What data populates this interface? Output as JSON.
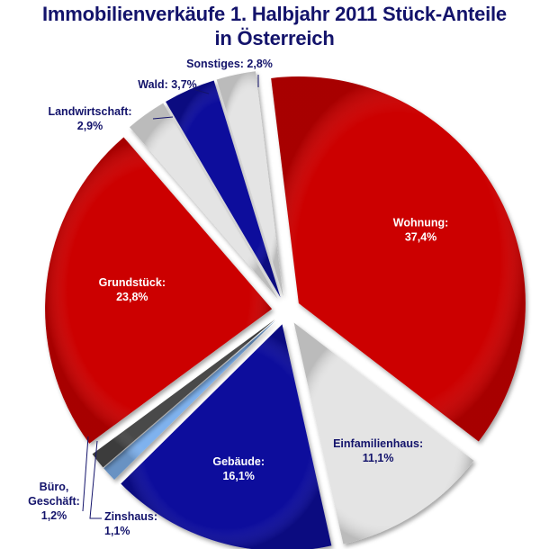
{
  "chart_data": {
    "type": "pie",
    "title_line1": "Immobilienverkäufe 1. Halbjahr 2011 Stück-Anteile",
    "title_line2": "in Österreich",
    "slices": [
      {
        "name": "Wohnung",
        "label_line1": "Wohnung:",
        "label_line2": "37,4%",
        "value": 37.4,
        "color": "#cc0000",
        "label_style": "inside"
      },
      {
        "name": "Einfamilienhaus",
        "label_line1": "Einfamilienhaus:",
        "label_line2": "11,1%",
        "value": 11.1,
        "color": "#e4e4e4",
        "label_style": "inside-dark"
      },
      {
        "name": "Gebäude",
        "label_line1": "Gebäude:",
        "label_line2": "16,1%",
        "value": 16.1,
        "color": "#0a0a9c",
        "label_style": "inside"
      },
      {
        "name": "Zinshaus",
        "label_line1": "Zinshaus:",
        "label_line2": "1,1%",
        "value": 1.1,
        "color": "#7fb2ee",
        "label_style": "outside"
      },
      {
        "name": "Büro, Geschäft",
        "label_line1": "Büro,",
        "label_line2": "Geschäft:",
        "label_line3": "1,2%",
        "value": 1.2,
        "color": "#4a4a4a",
        "label_style": "outside"
      },
      {
        "name": "Grundstück",
        "label_line1": "Grundstück:",
        "label_line2": "23,8%",
        "value": 23.8,
        "color": "#cc0000",
        "label_style": "inside"
      },
      {
        "name": "Landwirtschaft",
        "label_line1": "Landwirtschaft:",
        "label_line2": "2,9%",
        "value": 2.9,
        "color": "#e4e4e4",
        "label_style": "outside"
      },
      {
        "name": "Wald",
        "label_line1": "Wald: 3,7%",
        "value": 3.7,
        "color": "#0a0a9c",
        "label_style": "outside"
      },
      {
        "name": "Sonstiges",
        "label_line1": "Sonstiges: 2,8%",
        "value": 2.8,
        "color": "#e4e4e4",
        "label_style": "outside"
      }
    ]
  }
}
